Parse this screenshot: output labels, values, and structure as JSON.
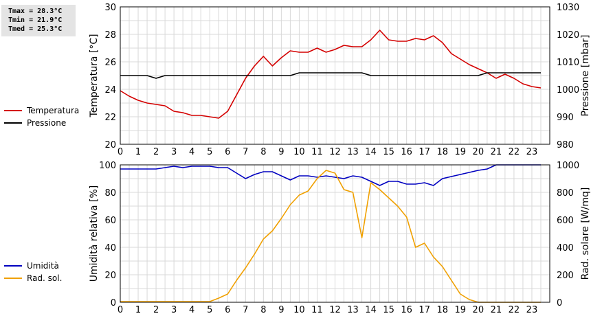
{
  "stats": {
    "tmax": "Tmax = 28.3°C",
    "tmin": "Tmin = 21.9°C",
    "tmed": "Tmed = 25.3°C"
  },
  "legend_top": [
    {
      "label": "Temperatura",
      "color": "#d40000"
    },
    {
      "label": "Pressione",
      "color": "#000000"
    }
  ],
  "legend_bottom": [
    {
      "label": "Umidità",
      "color": "#0000c0"
    },
    {
      "label": "Rad. sol.",
      "color": "#f0a000"
    }
  ],
  "chart_data": [
    {
      "type": "line",
      "x_ticks": [
        "0",
        "1",
        "2",
        "3",
        "4",
        "5",
        "6",
        "7",
        "8",
        "9",
        "10",
        "11",
        "12",
        "13",
        "14",
        "15",
        "16",
        "17",
        "18",
        "19",
        "20",
        "21",
        "22",
        "23"
      ],
      "x_range": [
        0,
        24
      ],
      "grid": true,
      "legend_placement": "left",
      "ylabel": "Temperatura [°C]",
      "ylim": [
        20,
        30
      ],
      "y_ticks": [
        "20",
        "22",
        "24",
        "26",
        "28",
        "30"
      ],
      "y2label": "Pressione [mbar]",
      "y2lim": [
        980,
        1030
      ],
      "y2_ticks": [
        "980",
        "990",
        "1000",
        "1010",
        "1020",
        "1030"
      ],
      "series": [
        {
          "name": "Temperatura",
          "axis": "left",
          "color": "#d40000",
          "x": [
            0,
            0.5,
            1,
            1.5,
            2,
            2.5,
            3,
            3.5,
            4,
            4.5,
            5,
            5.5,
            6,
            6.5,
            7,
            7.5,
            8,
            8.5,
            9,
            9.5,
            10,
            10.5,
            11,
            11.5,
            12,
            12.5,
            13,
            13.5,
            14,
            14.5,
            15,
            15.5,
            16,
            16.5,
            17,
            17.5,
            18,
            18.5,
            19,
            19.5,
            20,
            20.5,
            21,
            21.5,
            22,
            22.5,
            23,
            23.5
          ],
          "y": [
            23.9,
            23.5,
            23.2,
            23.0,
            22.9,
            22.8,
            22.4,
            22.3,
            22.1,
            22.1,
            22.0,
            21.9,
            22.4,
            23.6,
            24.8,
            25.7,
            26.4,
            25.7,
            26.3,
            26.8,
            26.7,
            26.7,
            27.0,
            26.7,
            26.9,
            27.2,
            27.1,
            27.1,
            27.6,
            28.3,
            27.6,
            27.5,
            27.5,
            27.7,
            27.6,
            27.9,
            27.4,
            26.6,
            26.2,
            25.8,
            25.5,
            25.2,
            24.8,
            25.1,
            24.8,
            24.4,
            24.2,
            24.1
          ]
        },
        {
          "name": "Pressione",
          "axis": "right",
          "color": "#000000",
          "x": [
            0,
            1.5,
            2,
            2.5,
            3,
            4,
            5,
            6,
            7,
            8,
            9,
            9.5,
            10,
            11,
            12,
            13,
            13.5,
            14,
            15,
            16,
            17,
            18,
            19,
            20,
            20.5,
            21,
            22,
            23,
            23.5
          ],
          "y": [
            1005,
            1005,
            1004,
            1005,
            1005,
            1005,
            1005,
            1005,
            1005,
            1005,
            1005,
            1005,
            1006,
            1006,
            1006,
            1006,
            1006,
            1005,
            1005,
            1005,
            1005,
            1005,
            1005,
            1005,
            1006,
            1006,
            1006,
            1006,
            1006
          ]
        }
      ]
    },
    {
      "type": "line",
      "x_ticks": [
        "0",
        "1",
        "2",
        "3",
        "4",
        "5",
        "6",
        "7",
        "8",
        "9",
        "10",
        "11",
        "12",
        "13",
        "14",
        "15",
        "16",
        "17",
        "18",
        "19",
        "20",
        "21",
        "22",
        "23"
      ],
      "x_range": [
        0,
        24
      ],
      "grid": true,
      "legend_placement": "left",
      "ylabel": "Umidità relativa [%]",
      "ylim": [
        0,
        100
      ],
      "y_ticks": [
        "0",
        "20",
        "40",
        "60",
        "80",
        "100"
      ],
      "y2label": "Rad. solare [W/mq]",
      "y2lim": [
        0,
        1000
      ],
      "y2_ticks": [
        "0",
        "200",
        "400",
        "600",
        "800",
        "1000"
      ],
      "series": [
        {
          "name": "Umidità",
          "axis": "left",
          "color": "#0000c0",
          "x": [
            0,
            1,
            2,
            2.5,
            3,
            3.5,
            4,
            5,
            5.5,
            6,
            6.5,
            7,
            7.5,
            8,
            8.5,
            9,
            9.5,
            10,
            10.5,
            11,
            11.5,
            12,
            12.5,
            13,
            13.5,
            14,
            14.5,
            15,
            15.5,
            16,
            16.5,
            17,
            17.5,
            18,
            19,
            20,
            20.5,
            21,
            22,
            23,
            23.5
          ],
          "y": [
            97,
            97,
            97,
            98,
            99,
            98,
            99,
            99,
            98,
            98,
            94,
            90,
            93,
            95,
            95,
            92,
            89,
            92,
            92,
            91,
            92,
            91,
            90,
            92,
            91,
            88,
            85,
            88,
            88,
            86,
            86,
            87,
            85,
            90,
            93,
            96,
            97,
            100,
            100,
            100,
            100
          ]
        },
        {
          "name": "Rad. sol.",
          "axis": "right",
          "color": "#f0a000",
          "x": [
            0,
            1,
            2,
            3,
            4,
            5,
            5.5,
            6,
            6.5,
            7,
            7.5,
            8,
            8.5,
            9,
            9.5,
            10,
            10.5,
            11,
            11.5,
            12,
            12.5,
            13,
            13.5,
            14,
            14.5,
            15,
            15.5,
            16,
            16.5,
            17,
            17.5,
            18,
            18.5,
            19,
            19.5,
            20,
            21,
            22,
            23,
            23.5
          ],
          "y": [
            5,
            5,
            5,
            5,
            5,
            5,
            30,
            60,
            160,
            250,
            350,
            460,
            520,
            610,
            710,
            780,
            810,
            900,
            960,
            940,
            820,
            800,
            470,
            870,
            820,
            760,
            700,
            620,
            400,
            430,
            330,
            260,
            160,
            60,
            20,
            0,
            0,
            0,
            0,
            0
          ]
        }
      ]
    }
  ]
}
